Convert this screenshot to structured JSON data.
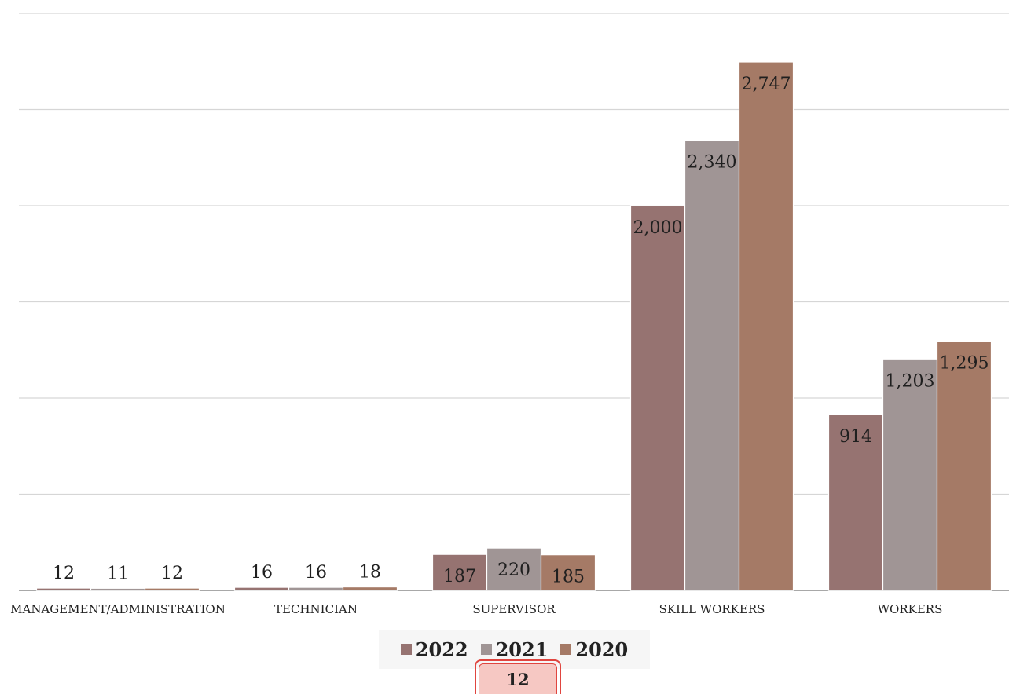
{
  "chart_data": {
    "type": "bar",
    "categories": [
      "MANAGEMENT/ADMINISTRATION",
      "TECHNICIAN",
      "SUPERVISOR",
      "SKILL WORKERS",
      "WORKERS"
    ],
    "series": [
      {
        "name": "2022",
        "values": [
          12,
          16,
          187,
          2000,
          914
        ],
        "labels": [
          "12",
          "16",
          "187",
          "2,000",
          "914"
        ],
        "color": "#967371"
      },
      {
        "name": "2021",
        "values": [
          11,
          16,
          220,
          2340,
          1203
        ],
        "labels": [
          "11",
          "16",
          "220",
          "2,340",
          "1,203"
        ],
        "color": "#a09595"
      },
      {
        "name": "2020",
        "values": [
          12,
          18,
          185,
          2747,
          1295
        ],
        "labels": [
          "12",
          "18",
          "185",
          "2,747",
          "1,295"
        ],
        "color": "#a57a66"
      }
    ],
    "ylim": [
      0,
      3000
    ],
    "grid": true,
    "legend_position": "bottom",
    "title": "",
    "xlabel": "",
    "ylabel": ""
  },
  "tooltip": {
    "value": "12"
  },
  "colors": {
    "gridline": "#d6d6d6",
    "axis": "#8c8c8c",
    "tooltip_border": "#e0453f",
    "tooltip_fill": "#f6c8c3"
  }
}
